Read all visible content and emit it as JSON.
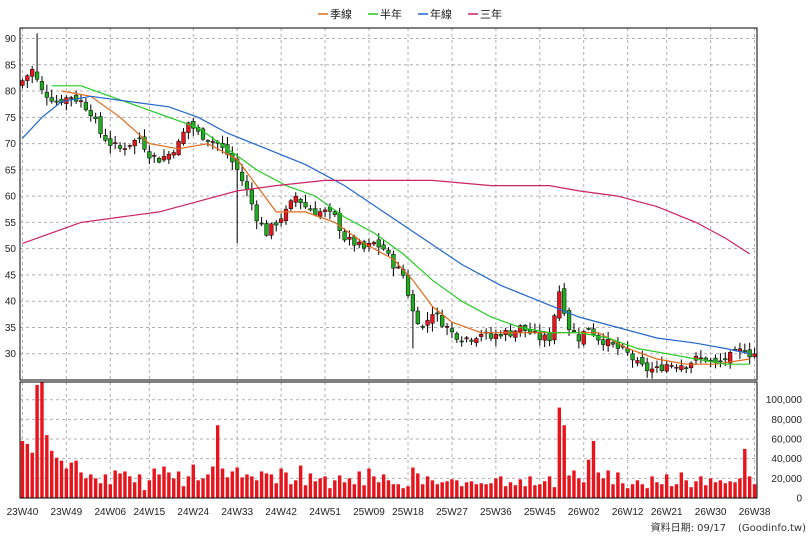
{
  "legend": [
    {
      "label": "季線",
      "color": "#e06a1a"
    },
    {
      "label": "半年",
      "color": "#22cc22"
    },
    {
      "label": "年線",
      "color": "#2266cc"
    },
    {
      "label": "三年",
      "color": "#cc2266"
    }
  ],
  "footer": {
    "date_label": "資料日期: 09/17",
    "source_label": "(Goodinfo.tw)"
  },
  "chart_data": [
    {
      "type": "candlestick",
      "title": "",
      "x_ticks": [
        "23W40",
        "23W49",
        "24W06",
        "24W15",
        "24W24",
        "24W33",
        "24W42",
        "24W51",
        "25W09",
        "25W18",
        "25W27",
        "25W36",
        "25W45",
        "26W02",
        "26W12",
        "26W21",
        "26W30",
        "26W38"
      ],
      "y_ticks": [
        30,
        35,
        40,
        45,
        50,
        55,
        60,
        65,
        70,
        75,
        80,
        85,
        90
      ],
      "ylim": [
        25,
        92
      ],
      "grid": true,
      "up_color": "#e8141c",
      "down_color": "#22aa22",
      "close_anchors": [
        [
          0,
          82
        ],
        [
          2,
          84
        ],
        [
          4,
          80
        ],
        [
          7,
          78
        ],
        [
          10,
          79
        ],
        [
          12,
          78
        ],
        [
          14,
          76
        ],
        [
          16,
          72
        ],
        [
          18,
          70
        ],
        [
          20,
          69
        ],
        [
          22,
          70
        ],
        [
          24,
          71
        ],
        [
          26,
          68
        ],
        [
          28,
          67
        ],
        [
          30,
          68
        ],
        [
          32,
          70
        ],
        [
          34,
          74
        ],
        [
          36,
          72
        ],
        [
          38,
          71
        ],
        [
          40,
          70
        ],
        [
          42,
          68
        ],
        [
          44,
          65
        ],
        [
          46,
          61
        ],
        [
          48,
          56
        ],
        [
          50,
          53
        ],
        [
          52,
          55
        ],
        [
          54,
          57
        ],
        [
          56,
          60
        ],
        [
          58,
          58
        ],
        [
          60,
          57
        ],
        [
          62,
          57
        ],
        [
          64,
          56
        ],
        [
          66,
          52
        ],
        [
          68,
          51
        ],
        [
          70,
          50
        ],
        [
          72,
          51
        ],
        [
          74,
          50
        ],
        [
          76,
          47
        ],
        [
          78,
          45
        ],
        [
          80,
          38
        ],
        [
          82,
          35
        ],
        [
          84,
          38
        ],
        [
          86,
          36
        ],
        [
          88,
          34
        ],
        [
          90,
          33
        ],
        [
          92,
          33
        ],
        [
          94,
          34
        ],
        [
          96,
          33
        ],
        [
          98,
          34
        ],
        [
          100,
          34
        ],
        [
          102,
          35
        ],
        [
          104,
          34
        ],
        [
          106,
          33
        ],
        [
          108,
          33
        ],
        [
          110,
          42
        ],
        [
          112,
          35
        ],
        [
          114,
          33
        ],
        [
          116,
          35
        ],
        [
          118,
          33
        ],
        [
          120,
          32
        ],
        [
          122,
          31
        ],
        [
          124,
          30
        ],
        [
          126,
          28
        ],
        [
          128,
          27
        ],
        [
          130,
          27
        ],
        [
          132,
          28
        ],
        [
          134,
          28
        ],
        [
          136,
          28
        ],
        [
          138,
          29
        ],
        [
          140,
          29
        ],
        [
          142,
          28
        ],
        [
          144,
          29
        ],
        [
          146,
          30
        ],
        [
          148,
          31
        ],
        [
          149,
          30
        ]
      ],
      "spikes": [
        {
          "index": 3,
          "high": 91
        },
        {
          "index": 44,
          "low": 51
        },
        {
          "index": 80,
          "low": 31
        },
        {
          "index": 110,
          "high": 43
        }
      ],
      "ma_lines": [
        {
          "name": "季線",
          "color": "#e06a1a",
          "points": [
            [
              8,
              80
            ],
            [
              14,
              79
            ],
            [
              20,
              75
            ],
            [
              26,
              70
            ],
            [
              32,
              69
            ],
            [
              38,
              70
            ],
            [
              44,
              67
            ],
            [
              48,
              62
            ],
            [
              52,
              57
            ],
            [
              58,
              57
            ],
            [
              64,
              55
            ],
            [
              70,
              51
            ],
            [
              76,
              48
            ],
            [
              80,
              44
            ],
            [
              84,
              39
            ],
            [
              88,
              36
            ],
            [
              94,
              34
            ],
            [
              100,
              34
            ],
            [
              106,
              34
            ],
            [
              112,
              34
            ],
            [
              118,
              34
            ],
            [
              124,
              31
            ],
            [
              130,
              29
            ],
            [
              136,
              28
            ],
            [
              142,
              28
            ],
            [
              149,
              29
            ]
          ]
        },
        {
          "name": "半年",
          "color": "#22cc22",
          "points": [
            [
              6,
              81
            ],
            [
              12,
              81
            ],
            [
              18,
              79
            ],
            [
              24,
              77
            ],
            [
              30,
              75
            ],
            [
              36,
              73
            ],
            [
              42,
              69
            ],
            [
              48,
              65
            ],
            [
              54,
              62
            ],
            [
              60,
              60
            ],
            [
              66,
              56
            ],
            [
              72,
              53
            ],
            [
              78,
              49
            ],
            [
              84,
              44
            ],
            [
              90,
              40
            ],
            [
              96,
              37
            ],
            [
              102,
              35
            ],
            [
              108,
              34
            ],
            [
              114,
              34
            ],
            [
              120,
              33
            ],
            [
              126,
              31
            ],
            [
              132,
              30
            ],
            [
              138,
              29
            ],
            [
              144,
              28
            ],
            [
              149,
              28
            ]
          ]
        },
        {
          "name": "年線",
          "color": "#2266cc",
          "points": [
            [
              0,
              71
            ],
            [
              4,
              75
            ],
            [
              8,
              78
            ],
            [
              14,
              79
            ],
            [
              22,
              78
            ],
            [
              30,
              77
            ],
            [
              36,
              75
            ],
            [
              42,
              72
            ],
            [
              50,
              69
            ],
            [
              58,
              66
            ],
            [
              66,
              62
            ],
            [
              74,
              57
            ],
            [
              82,
              52
            ],
            [
              90,
              47
            ],
            [
              98,
              43
            ],
            [
              106,
              40
            ],
            [
              114,
              37
            ],
            [
              122,
              35
            ],
            [
              130,
              33
            ],
            [
              138,
              32
            ],
            [
              144,
              31
            ],
            [
              149,
              30
            ]
          ]
        },
        {
          "name": "三年",
          "color": "#cc2266",
          "points": [
            [
              0,
              51
            ],
            [
              6,
              53
            ],
            [
              12,
              55
            ],
            [
              20,
              56
            ],
            [
              28,
              57
            ],
            [
              36,
              59
            ],
            [
              44,
              61
            ],
            [
              52,
              62
            ],
            [
              62,
              63
            ],
            [
              74,
              63
            ],
            [
              84,
              63
            ],
            [
              96,
              62
            ],
            [
              108,
              62
            ],
            [
              114,
              61
            ],
            [
              122,
              60
            ],
            [
              130,
              58
            ],
            [
              138,
              55
            ],
            [
              144,
              52
            ],
            [
              149,
              49
            ]
          ]
        }
      ]
    },
    {
      "type": "bar",
      "title": "",
      "y_ticks": [
        0,
        20000,
        40000,
        60000,
        80000,
        100000
      ],
      "y_tick_labels": [
        "0",
        "20,000",
        "40,000",
        "60,000",
        "80,000",
        "100,000"
      ],
      "ylim": [
        0,
        118000
      ],
      "color": "#e8141c",
      "values": [
        58000,
        55000,
        46000,
        115000,
        118000,
        64000,
        48000,
        41000,
        38000,
        30000,
        36000,
        38000,
        26000,
        20000,
        24000,
        20000,
        15000,
        24000,
        14000,
        28000,
        25000,
        27000,
        22000,
        16000,
        24000,
        8000,
        18000,
        30000,
        24000,
        32000,
        26000,
        20000,
        27000,
        12000,
        22000,
        34000,
        18000,
        20000,
        24000,
        32000,
        74000,
        30000,
        21000,
        27000,
        31000,
        21000,
        24000,
        22000,
        18000,
        27000,
        25000,
        24000,
        15000,
        30000,
        26000,
        14000,
        18000,
        33000,
        13000,
        25000,
        17000,
        20000,
        22000,
        10000,
        18000,
        23000,
        16000,
        20000,
        14000,
        27000,
        13000,
        30000,
        22000,
        16000,
        24000,
        18000,
        14000,
        14000,
        10000,
        12000,
        31000,
        25000,
        14000,
        22000,
        18000,
        14000,
        16000,
        17000,
        19000,
        18000,
        12000,
        16000,
        17000,
        14000,
        15000,
        14000,
        15000,
        20000,
        22000,
        12000,
        16000,
        13000,
        19000,
        12000,
        22000,
        13000,
        14000,
        17000,
        22000,
        11000,
        92000,
        74000,
        23000,
        28000,
        20000,
        16000,
        39000,
        58000,
        26000,
        20000,
        28000,
        14000,
        26000,
        15000,
        10000,
        14000,
        18000,
        14000,
        10000,
        22000,
        16000,
        14000,
        24000,
        12000,
        14000,
        26000,
        18000,
        11000,
        17000,
        22000,
        13000,
        20000,
        16000,
        18000,
        15000,
        17000,
        16000,
        20000,
        50000,
        22000,
        14000
      ]
    }
  ]
}
